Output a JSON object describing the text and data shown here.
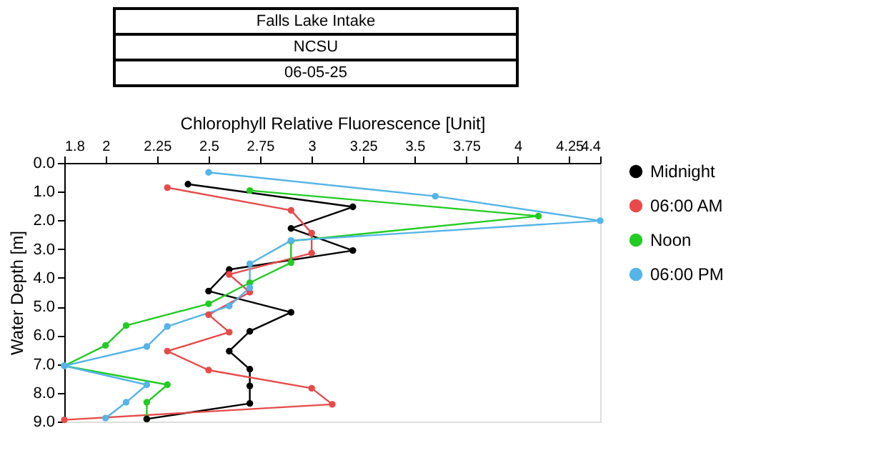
{
  "chart_data": {
    "type": "line",
    "title": "Falls Lake Intake",
    "subtitle": "NCSU",
    "annotations": [
      "06-05-25"
    ],
    "xlabel": "Chlorophyll Relative Fluorescence [Unit]",
    "ylabel": "Water Depth [m]",
    "xlim": [
      1.8,
      4.4
    ],
    "xticks": [
      1.8,
      2,
      2.25,
      2.5,
      2.75,
      3,
      3.25,
      3.5,
      3.75,
      4,
      4.25,
      4.4
    ],
    "ylim": [
      9,
      0
    ],
    "yticks": [
      {
        "value": 0,
        "label": "0.0"
      },
      {
        "value": 1,
        "label": "1.0"
      },
      {
        "value": 2,
        "label": "2.0"
      },
      {
        "value": 3,
        "label": "3.0"
      },
      {
        "value": 4,
        "label": "4.0"
      },
      {
        "value": 5,
        "label": "5.0"
      },
      {
        "value": 6,
        "label": "6.0"
      },
      {
        "value": 7,
        "label": "7.0"
      },
      {
        "value": 8,
        "label": "8.0"
      },
      {
        "value": 9,
        "label": "9.0"
      }
    ],
    "grid": false,
    "legend": "top right",
    "marker": "circle",
    "line_style": "solid",
    "series": [
      {
        "name": "Midnight",
        "color": "#000000",
        "x": [
          2.4,
          3.2,
          2.9,
          3.2,
          2.6,
          2.5,
          2.9,
          2.7,
          2.6,
          2.7,
          2.7,
          2.7,
          2.2
        ],
        "values": [
          0.74,
          1.53,
          2.28,
          3.05,
          3.71,
          4.46,
          5.2,
          5.86,
          6.55,
          7.18,
          7.76,
          8.37,
          8.91
        ]
      },
      {
        "name": "06:00 AM",
        "color": "#e84a4a",
        "x": [
          2.3,
          2.9,
          3.0,
          3.0,
          2.6,
          2.7,
          2.5,
          2.6,
          2.3,
          2.5,
          3.0,
          3.1,
          1.8
        ],
        "values": [
          0.86,
          1.65,
          2.44,
          3.14,
          3.88,
          4.5,
          5.28,
          5.89,
          6.55,
          7.21,
          7.84,
          8.4,
          8.94
        ]
      },
      {
        "name": "Noon",
        "color": "#22cc22",
        "x": [
          2.7,
          4.1,
          2.9,
          2.9,
          2.7,
          2.5,
          2.1,
          2.0,
          1.8,
          2.3,
          2.2,
          2.2
        ],
        "values": [
          0.96,
          1.85,
          2.72,
          3.47,
          4.17,
          4.9,
          5.66,
          6.35,
          7.06,
          7.72,
          8.33,
          8.91
        ]
      },
      {
        "name": "06:00 PM",
        "color": "#55b4e8",
        "x": [
          2.5,
          3.6,
          4.4,
          2.9,
          2.7,
          2.7,
          2.6,
          2.3,
          2.2,
          1.8,
          2.2,
          2.1,
          2.0
        ],
        "values": [
          0.33,
          1.16,
          2.01,
          2.7,
          3.51,
          4.34,
          4.98,
          5.69,
          6.39,
          7.06,
          7.72,
          8.33,
          8.88
        ]
      }
    ]
  }
}
